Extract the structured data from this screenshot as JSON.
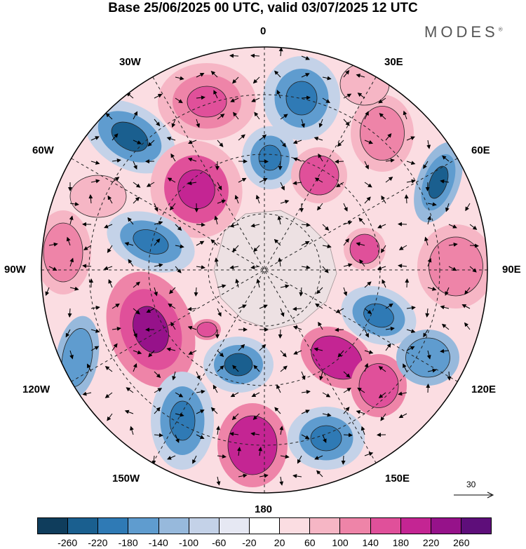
{
  "title": "Base 25/06/2025 00 UTC, valid 03/07/2025 12 UTC",
  "brand": "MODES",
  "brand_mark": "®",
  "longitude_labels": {
    "top": "0",
    "bottom": "180",
    "left": "90W",
    "right": "90E",
    "tl1": "30W",
    "tl2": "60W",
    "tr1": "30E",
    "tr2": "60E",
    "bl1": "120W",
    "bl2": "150W",
    "br1": "120E",
    "br2": "150E"
  },
  "vector_scale": "30",
  "colorbar": {
    "colors": [
      "#0f3d5c",
      "#1a5f8f",
      "#2f7ab5",
      "#5f9ccf",
      "#97b9dc",
      "#c4d2e8",
      "#e6e8f3",
      "#ffffff",
      "#fbdde2",
      "#f6b6c5",
      "#ee84a8",
      "#e0509a",
      "#c42593",
      "#96128a",
      "#5e0e7a"
    ],
    "ticks": [
      "-260",
      "-220",
      "-180",
      "-140",
      "-100",
      "-60",
      "-20",
      "20",
      "60",
      "100",
      "140",
      "180",
      "220",
      "260"
    ]
  }
}
